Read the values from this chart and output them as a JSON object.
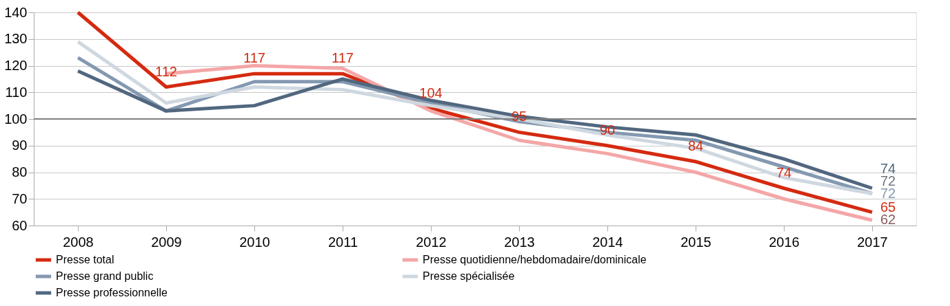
{
  "chart_data": {
    "type": "line",
    "categories": [
      "2008",
      "2009",
      "2010",
      "2011",
      "2012",
      "2013",
      "2014",
      "2015",
      "2016",
      "2017"
    ],
    "series": [
      {
        "name": "Presse total",
        "color": "#d42a10",
        "values": [
          140,
          112,
          117,
          117,
          104,
          95,
          90,
          84,
          74,
          65
        ],
        "value_labels": [
          null,
          "112",
          "117",
          "117",
          "104",
          "95",
          "90",
          "84",
          "74",
          "65"
        ]
      },
      {
        "name": "Presse quotidienne/hebdomadaire/dominicale",
        "color": "#f4a6a6",
        "values": [
          null,
          117,
          120,
          119,
          103,
          92,
          87,
          80,
          70,
          62
        ],
        "value_labels": [
          null,
          null,
          null,
          null,
          null,
          null,
          null,
          null,
          null,
          "62"
        ]
      },
      {
        "name": "Presse grand public",
        "color": "#8499b1",
        "values": [
          123,
          103,
          114,
          114,
          106,
          99,
          95,
          92,
          82,
          72
        ],
        "value_labels": [
          null,
          null,
          null,
          null,
          null,
          null,
          null,
          null,
          null,
          "72"
        ]
      },
      {
        "name": "Presse spécialisée",
        "color": "#cfd8e0",
        "values": [
          129,
          106,
          112,
          111,
          105,
          100,
          94,
          89,
          78,
          72
        ],
        "value_labels": [
          null,
          null,
          null,
          null,
          null,
          null,
          null,
          null,
          null,
          "72"
        ]
      },
      {
        "name": "Presse professionnelle",
        "color": "#51677f",
        "values": [
          118,
          103,
          105,
          115,
          107,
          101,
          97,
          94,
          85,
          74
        ],
        "value_labels": [
          null,
          null,
          null,
          null,
          null,
          null,
          null,
          null,
          null,
          "74"
        ]
      }
    ],
    "ylim": [
      60,
      140
    ],
    "yticks": [
      60,
      70,
      80,
      90,
      100,
      110,
      120,
      130,
      140
    ],
    "ref_lines": [
      {
        "axis": "y",
        "value": 100,
        "color": "#7f7f7f"
      }
    ],
    "grid": "y",
    "legend": "bottom",
    "marker": "none",
    "line_style": "solid"
  }
}
